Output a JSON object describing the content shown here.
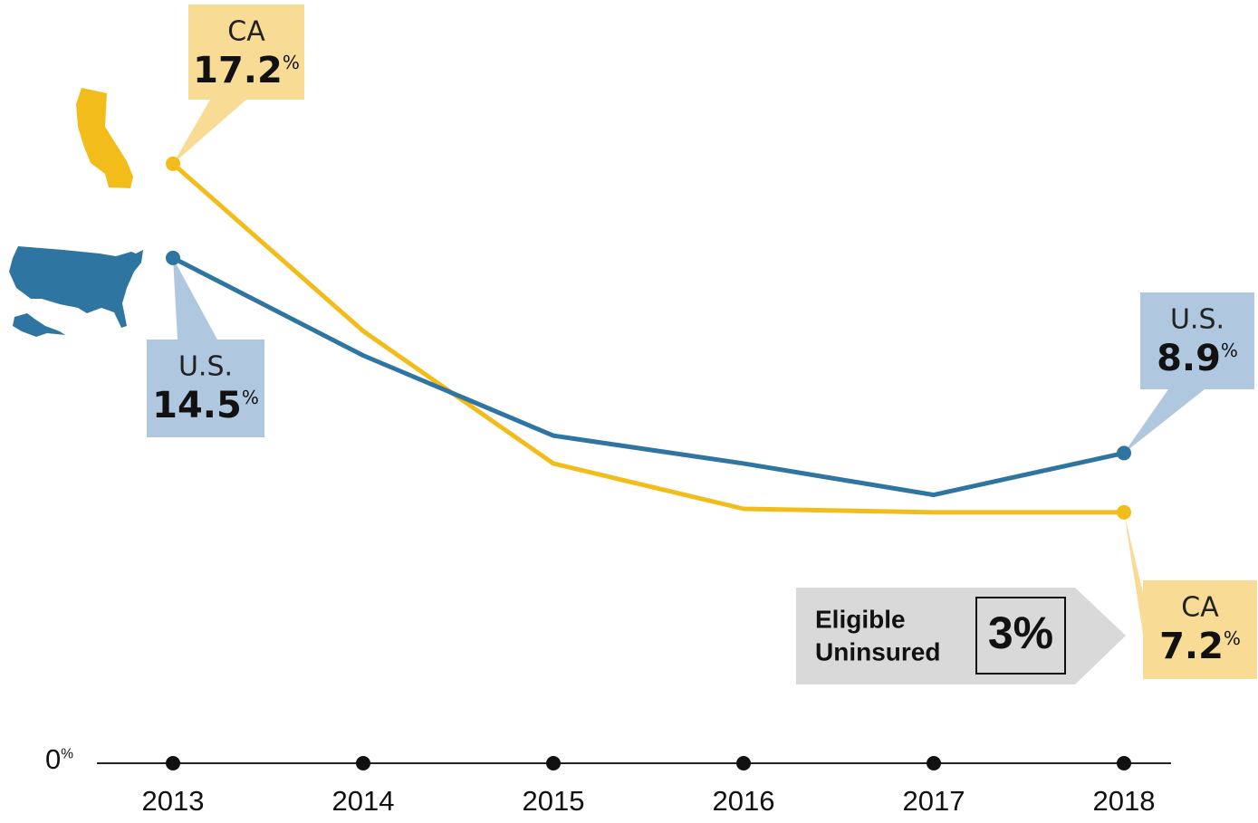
{
  "chart_data": {
    "type": "line",
    "categories": [
      "2013",
      "2014",
      "2015",
      "2016",
      "2017",
      "2018"
    ],
    "series": [
      {
        "name": "CA",
        "color": "#f2bd1b",
        "callout_color": "#f8dc96",
        "values": [
          17.2,
          12.4,
          8.6,
          7.3,
          7.2,
          7.2
        ],
        "value_labels": [
          "17.2%",
          null,
          null,
          null,
          null,
          "7.2%"
        ]
      },
      {
        "name": "U.S.",
        "color": "#2f75a1",
        "callout_color": "#b0c7e0",
        "values": [
          14.5,
          11.7,
          9.4,
          8.6,
          7.7,
          8.9
        ],
        "value_labels": [
          "14.5%",
          null,
          null,
          null,
          null,
          "8.9%"
        ]
      }
    ],
    "ylim": [
      0,
      21.9
    ],
    "yticks": [
      {
        "value": 0,
        "label": "0%"
      }
    ],
    "annotation": {
      "label": [
        "Eligible",
        "Uninsured"
      ],
      "value": "3%"
    }
  }
}
